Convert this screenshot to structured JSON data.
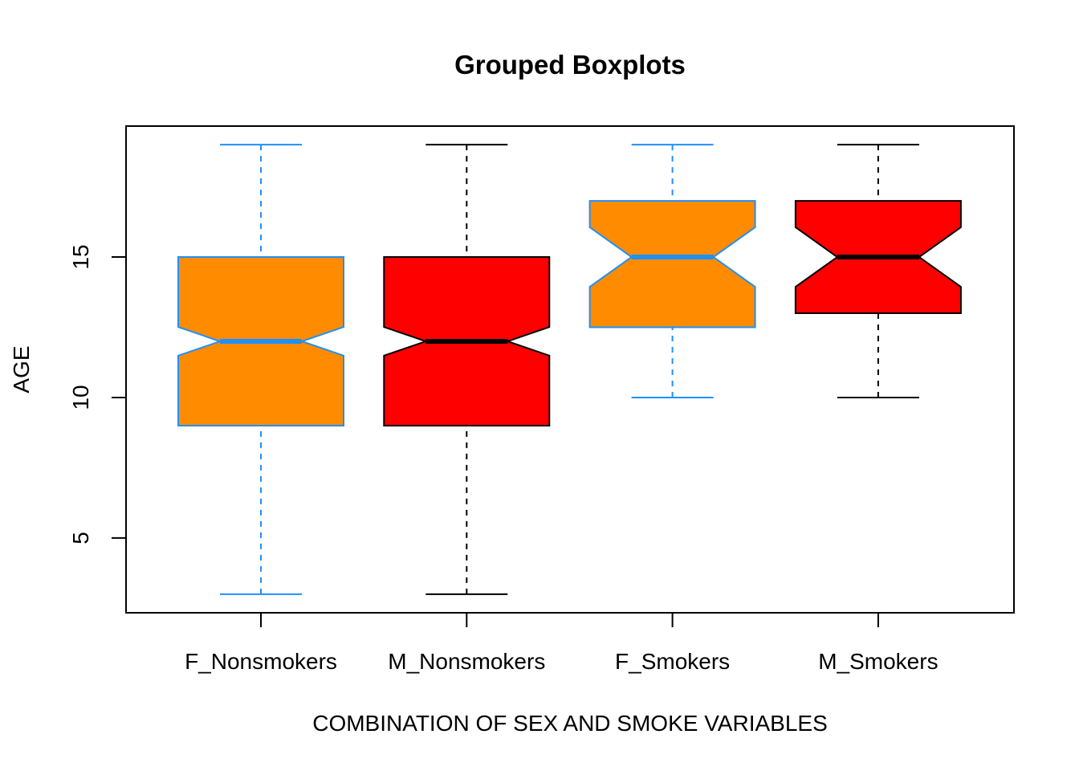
{
  "chart_data": {
    "type": "boxplot",
    "title": "Grouped Boxplots",
    "x_label": "COMBINATION OF SEX AND SMOKE VARIABLES",
    "y_label": "AGE",
    "categories": [
      "F_Nonsmokers",
      "M_Nonsmokers",
      "F_Smokers",
      "M_Smokers"
    ],
    "min": [
      3,
      3,
      10,
      10
    ],
    "q1": [
      9,
      9,
      12.5,
      13
    ],
    "median": [
      12,
      12,
      15,
      15
    ],
    "q3": [
      15,
      15,
      17,
      17
    ],
    "max": [
      19,
      19,
      19,
      19
    ],
    "notch_low": [
      11.49,
      11.49,
      13.94,
      13.94
    ],
    "notch_high": [
      12.51,
      12.51,
      16.06,
      16.06
    ],
    "fill_colors": [
      "#ff8c00",
      "#ff0000",
      "#ff8c00",
      "#ff0000"
    ],
    "border_colors": [
      "#1e90ff",
      "#000000",
      "#1e90ff",
      "#000000"
    ],
    "ylim": [
      2.34,
      19.66
    ],
    "yticks": [
      5,
      10,
      15
    ]
  }
}
